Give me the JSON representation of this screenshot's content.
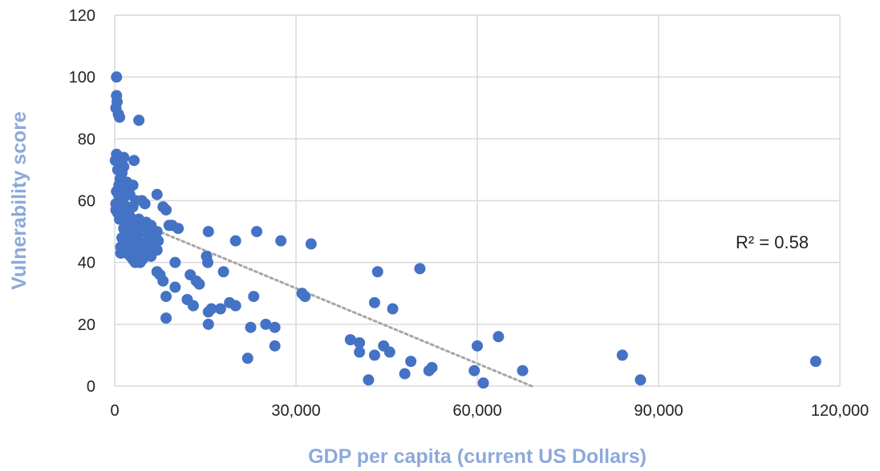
{
  "chart_data": {
    "type": "scatter",
    "xlabel": "GDP per capita (current US Dollars)",
    "ylabel": "Vulnerability score",
    "xlim": [
      0,
      120000
    ],
    "ylim": [
      0,
      120
    ],
    "x_ticks": [
      "0",
      "30,000",
      "60,000",
      "90,000",
      "120,000"
    ],
    "y_ticks": [
      "0",
      "20",
      "40",
      "60",
      "80",
      "100",
      "120"
    ],
    "grid": true,
    "annotation": "R² = 0.58",
    "trendline": {
      "style": "dotted",
      "x": [
        0,
        69000
      ],
      "y": [
        56,
        0
      ]
    },
    "colors": {
      "points": "#4472C4",
      "trendline": "#A6A6A6",
      "axis_title": "#8DA9DB",
      "grid": "#D9D9D9"
    },
    "points": [
      [
        300,
        100
      ],
      [
        300,
        94
      ],
      [
        400,
        92
      ],
      [
        200,
        90
      ],
      [
        600,
        88
      ],
      [
        800,
        87
      ],
      [
        4000,
        86
      ],
      [
        300,
        75
      ],
      [
        700,
        74
      ],
      [
        1500,
        74
      ],
      [
        3200,
        73
      ],
      [
        100,
        73
      ],
      [
        1000,
        72
      ],
      [
        1500,
        71
      ],
      [
        500,
        70
      ],
      [
        1200,
        69
      ],
      [
        900,
        67
      ],
      [
        2000,
        66
      ],
      [
        700,
        65
      ],
      [
        1600,
        64
      ],
      [
        3000,
        65
      ],
      [
        300,
        63
      ],
      [
        600,
        62
      ],
      [
        1500,
        61
      ],
      [
        2500,
        62
      ],
      [
        4500,
        60
      ],
      [
        7000,
        62
      ],
      [
        3500,
        60
      ],
      [
        200,
        59
      ],
      [
        1000,
        59
      ],
      [
        2000,
        58
      ],
      [
        3000,
        58
      ],
      [
        5000,
        59
      ],
      [
        8000,
        58
      ],
      [
        8500,
        57
      ],
      [
        200,
        57
      ],
      [
        500,
        56
      ],
      [
        1200,
        55
      ],
      [
        2500,
        55
      ],
      [
        4000,
        54
      ],
      [
        5200,
        53
      ],
      [
        800,
        54
      ],
      [
        1800,
        53
      ],
      [
        3000,
        53
      ],
      [
        6000,
        52
      ],
      [
        9000,
        52
      ],
      [
        9500,
        52
      ],
      [
        10500,
        51
      ],
      [
        1500,
        51
      ],
      [
        2800,
        51
      ],
      [
        4500,
        51
      ],
      [
        7000,
        50
      ],
      [
        3200,
        50
      ],
      [
        5000,
        50
      ],
      [
        6500,
        49
      ],
      [
        1200,
        48
      ],
      [
        2200,
        48
      ],
      [
        3800,
        48
      ],
      [
        6800,
        48
      ],
      [
        5500,
        47
      ],
      [
        7200,
        47
      ],
      [
        1500,
        46
      ],
      [
        2600,
        46
      ],
      [
        4000,
        46
      ],
      [
        5000,
        46
      ],
      [
        6200,
        45
      ],
      [
        1000,
        45
      ],
      [
        3000,
        44
      ],
      [
        4500,
        44
      ],
      [
        6000,
        44
      ],
      [
        7000,
        44
      ],
      [
        2000,
        43
      ],
      [
        3600,
        43
      ],
      [
        5200,
        43
      ],
      [
        1000,
        43
      ],
      [
        2600,
        42
      ],
      [
        4000,
        42
      ],
      [
        6000,
        42
      ],
      [
        3000,
        41
      ],
      [
        4600,
        41
      ],
      [
        3400,
        40
      ],
      [
        4200,
        40
      ],
      [
        15500,
        50
      ],
      [
        20000,
        47
      ],
      [
        23500,
        50
      ],
      [
        27500,
        47
      ],
      [
        32500,
        46
      ],
      [
        15200,
        42
      ],
      [
        15400,
        40
      ],
      [
        18000,
        37
      ],
      [
        12500,
        36
      ],
      [
        13500,
        34
      ],
      [
        14000,
        33
      ],
      [
        10000,
        40
      ],
      [
        7000,
        37
      ],
      [
        7500,
        36
      ],
      [
        8000,
        34
      ],
      [
        10000,
        32
      ],
      [
        8500,
        29
      ],
      [
        12000,
        28
      ],
      [
        13000,
        26
      ],
      [
        16000,
        25
      ],
      [
        15500,
        24
      ],
      [
        17500,
        25
      ],
      [
        20000,
        26
      ],
      [
        19000,
        27
      ],
      [
        23000,
        29
      ],
      [
        31500,
        29
      ],
      [
        31000,
        30
      ],
      [
        43500,
        37
      ],
      [
        50500,
        38
      ],
      [
        43000,
        27
      ],
      [
        46000,
        25
      ],
      [
        15500,
        20
      ],
      [
        8500,
        22
      ],
      [
        25000,
        20
      ],
      [
        26500,
        19
      ],
      [
        22500,
        19
      ],
      [
        26500,
        13
      ],
      [
        22000,
        9
      ],
      [
        39000,
        15
      ],
      [
        40500,
        14
      ],
      [
        44500,
        13
      ],
      [
        45500,
        11
      ],
      [
        40500,
        11
      ],
      [
        43000,
        10
      ],
      [
        49000,
        8
      ],
      [
        52500,
        6
      ],
      [
        52000,
        5
      ],
      [
        48000,
        4
      ],
      [
        42000,
        2
      ],
      [
        59500,
        5
      ],
      [
        60000,
        13
      ],
      [
        63500,
        16
      ],
      [
        67500,
        5
      ],
      [
        61000,
        1
      ],
      [
        84000,
        10
      ],
      [
        87000,
        2
      ],
      [
        116000,
        8
      ]
    ]
  }
}
